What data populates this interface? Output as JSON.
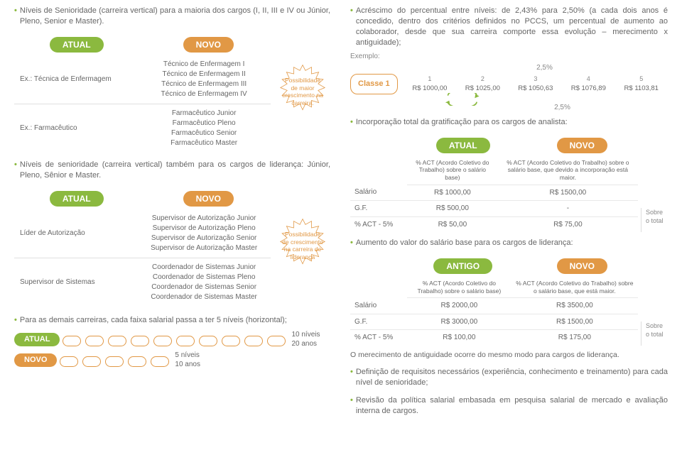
{
  "colors": {
    "green": "#8bb93f",
    "orange": "#e19845",
    "text": "#666666",
    "muted": "#888888",
    "border": "#e0e0e0"
  },
  "labels": {
    "atual": "ATUAL",
    "novo": "NOVO",
    "antigo": "ANTIGO"
  },
  "left": {
    "bullet1": "Níveis de Senioridade (carreira vertical) para a maioria dos cargos (I, II, III e IV ou Júnior, Pleno, Senior e Master).",
    "table1": {
      "rows": [
        {
          "left": "Ex.: Técnica de Enfermagem",
          "right": [
            "Técnico de Enfermagem I",
            "Técnico de Enfermagem II",
            "Técnico de Enfermagem III",
            "Técnico de Enfermagem IV"
          ]
        },
        {
          "left": "Ex.: Farmacêutico",
          "right": [
            "Farmacêutico Junior",
            "Farmacêutico Pleno",
            "Farmacêutico Senior",
            "Farmacêutico Master"
          ]
        }
      ],
      "burst": "Possibilidade de maior crescimento na carreira."
    },
    "bullet2": "Níveis de senioridade (carreira vertical) também para os cargos de liderança: Júnior, Pleno, Sênior e Master.",
    "table2": {
      "rows": [
        {
          "left": "Líder de Autorização",
          "right": [
            "Supervisor de Autorização Junior",
            "Supervisor de Autorização Pleno",
            "Supervisor de Autorização Senior",
            "Supervisor de Autorização Master"
          ]
        },
        {
          "left": "Supervisor de Sistemas",
          "right": [
            "Coordenador de Sistemas Junior",
            "Coordenador de Sistemas Pleno",
            "Coordenador de Sistemas Senior",
            "Coordenador de Sistemas Master"
          ]
        }
      ],
      "burst": "Possibilidade de crescimento na carreira de liderança"
    },
    "bullet3": "Para as demais carreiras, cada faixa salarial passa a ter 5 níveis (horizontal);",
    "levels": {
      "atual": {
        "count": 10,
        "labelLevels": "10 níveis",
        "labelYears": "20 anos"
      },
      "novo": {
        "count": 5,
        "labelLevels": "5 níveis",
        "labelYears": "10 anos"
      }
    }
  },
  "right": {
    "bullet1": "Acréscimo do percentual entre níveis: de 2,43% para 2,50% (a cada dois anos é concedido, dentro dos critérios definidos no PCCS, um percentual de aumento ao colaborador, desde que sua carreira comporte essa evolução – merecimento x antiguidade);",
    "exemploLabel": "Exemplo:",
    "pctTop": "2,5%",
    "pctBot": "2,5%",
    "classe": "Classe 1",
    "vals": {
      "nums": [
        "1",
        "2",
        "3",
        "4",
        "5"
      ],
      "money": [
        "R$ 1000,00",
        "R$ 1025,00",
        "R$ 1050,63",
        "R$ 1076,89",
        "R$ 1103,81"
      ]
    },
    "bullet2": "Incorporação total da gratificação para os cargos de analista:",
    "tableA": {
      "note1": "% ACT (Acordo Coletivo do Trabalho) sobre o salário base)",
      "note2": "% ACT (Acordo Coletivo do Trabalho) sobre o salário base, que devido a incorporação está maior.",
      "rows": [
        [
          "Salário",
          "R$ 1000,00",
          "R$ 1500,00"
        ],
        [
          "G.F.",
          "R$ 500,00",
          "-"
        ],
        [
          "% ACT - 5%",
          "R$ 50,00",
          "R$ 75,00"
        ]
      ],
      "side": "Sobre o total"
    },
    "bullet3": "Aumento do valor do salário base para os cargos de liderança:",
    "tableB": {
      "note1": "% ACT (Acordo Coletivo do Trabalho) sobre o salário base)",
      "note2": "% ACT (Acordo Coletivo do Trabalho) sobre o salário base, que está maior.",
      "rows": [
        [
          "Salário",
          "R$ 2000,00",
          "R$ 3500,00"
        ],
        [
          "G.F.",
          "R$ 3000,00",
          "R$ 1500,00"
        ],
        [
          "% ACT - 5%",
          "R$ 100,00",
          "R$ 175,00"
        ]
      ],
      "side": "Sobre o total"
    },
    "bullet_after1": "O merecimento de antiguidade ocorre do mesmo modo para cargos de liderança.",
    "bullet4": "Definição de requisitos necessários (experiência, conhecimento e treinamento) para cada nível de senioridade;",
    "bullet5": "Revisão da política salarial embasada em pesquisa salarial de mercado e avaliação interna de cargos."
  }
}
